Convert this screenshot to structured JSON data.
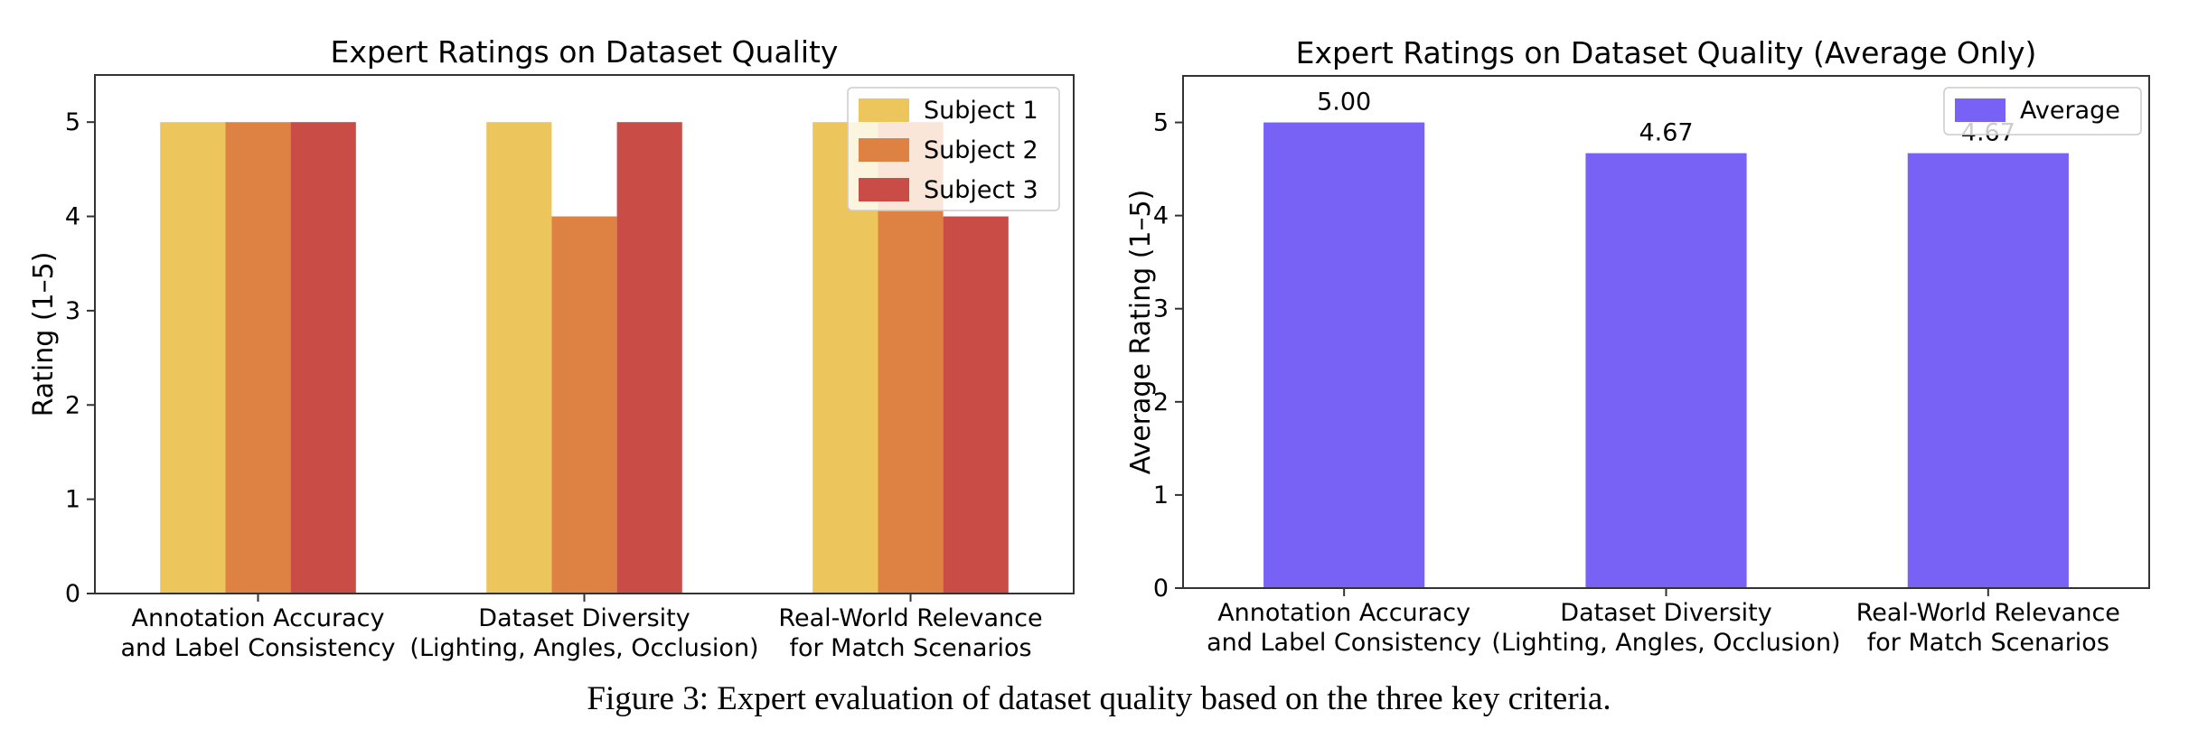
{
  "caption": "Figure 3: Expert evaluation of dataset quality based on the three key criteria.",
  "chart_data": [
    {
      "type": "bar",
      "title": "Expert Ratings on Dataset Quality",
      "xlabel": "",
      "ylabel": "Rating (1–5)",
      "ylim": [
        0,
        5.5
      ],
      "yticks": [
        "0",
        "1",
        "2",
        "3",
        "4",
        "5"
      ],
      "categories": [
        [
          "Annotation Accuracy",
          "and Label Consistency"
        ],
        [
          "Dataset Diversity",
          "(Lighting, Angles, Occlusion)"
        ],
        [
          "Real-World Relevance",
          "for Match Scenarios"
        ]
      ],
      "series": [
        {
          "name": "Subject 1",
          "values": [
            5,
            5,
            5
          ],
          "color": "#ecc55c"
        },
        {
          "name": "Subject 2",
          "values": [
            5,
            4,
            5
          ],
          "color": "#de8243"
        },
        {
          "name": "Subject 3",
          "values": [
            5,
            5,
            4
          ],
          "color": "#c94c47"
        }
      ],
      "legend": "top-right",
      "grid": false
    },
    {
      "type": "bar",
      "title": "Expert Ratings on Dataset Quality (Average Only)",
      "xlabel": "",
      "ylabel": "Average Rating (1–5)",
      "ylim": [
        0,
        5.5
      ],
      "yticks": [
        "0",
        "1",
        "2",
        "3",
        "4",
        "5"
      ],
      "categories": [
        [
          "Annotation Accuracy",
          "and Label Consistency"
        ],
        [
          "Dataset Diversity",
          "(Lighting, Angles, Occlusion)"
        ],
        [
          "Real-World Relevance",
          "for Match Scenarios"
        ]
      ],
      "series": [
        {
          "name": "Average",
          "values": [
            5.0,
            4.67,
            4.67
          ],
          "color": "#7762f5"
        }
      ],
      "data_labels": [
        "5.00",
        "4.67",
        "4.67"
      ],
      "legend": "top-right",
      "grid": false
    }
  ]
}
